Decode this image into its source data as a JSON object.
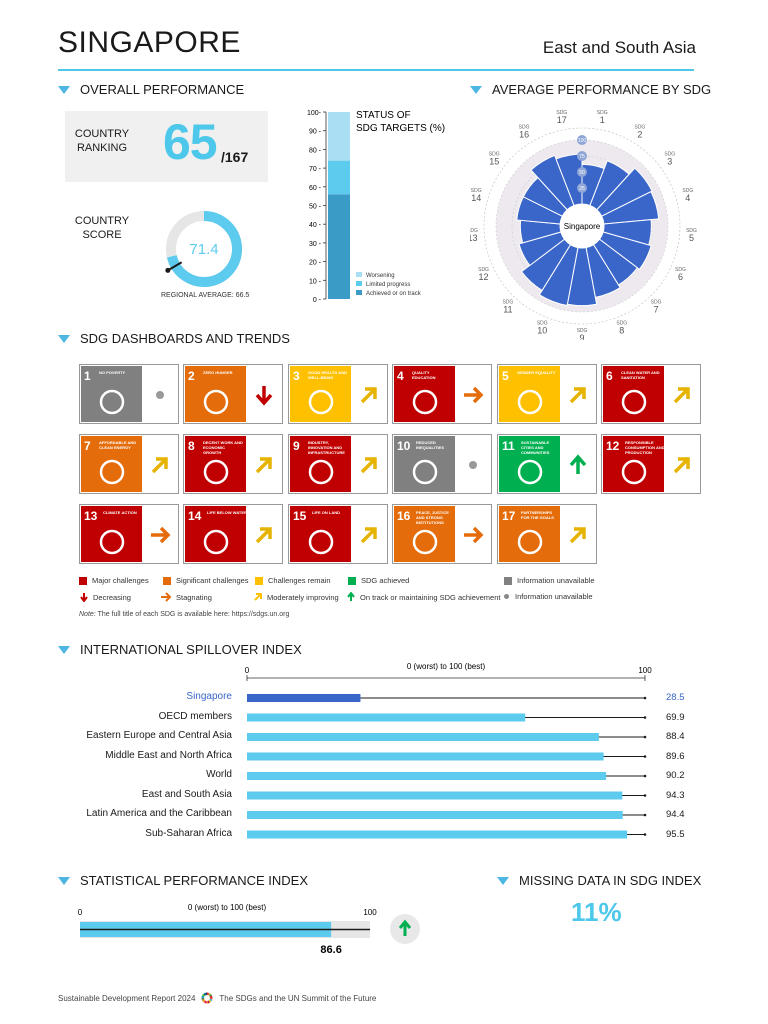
{
  "header": {
    "country": "SINGAPORE",
    "region": "East and South Asia"
  },
  "overall": {
    "title": "OVERALL PERFORMANCE",
    "rank_label_1": "COUNTRY",
    "rank_label_2": "RANKING",
    "rank": "65",
    "rank_of": "/167",
    "score_label_1": "COUNTRY",
    "score_label_2": "SCORE",
    "score": "71.4",
    "score_value": 71.4,
    "regional_avg_text": "REGIONAL AVERAGE: 66.5",
    "regional_avg": 66.5
  },
  "targets": {
    "title_1": "STATUS OF",
    "title_2": "SDG TARGETS (%)",
    "ticks": [
      "0",
      "10",
      "20",
      "30",
      "40",
      "50",
      "60",
      "70",
      "80",
      "90",
      "100"
    ],
    "legend": [
      "Worsening",
      "Limited progress",
      "Achieved or on track"
    ],
    "colors": [
      "#a9def3",
      "#5ccbee",
      "#3b9bc7"
    ]
  },
  "avg_sdg": {
    "title": "AVERAGE PERFORMANCE BY SDG",
    "center_label": "Singapore",
    "ring_labels": [
      "25",
      "50",
      "75",
      "100"
    ],
    "sdg_prefix": "SDG"
  },
  "dashboards": {
    "title": "SDG DASHBOARDS AND TRENDS",
    "goals": [
      {
        "num": "1",
        "name": "NO POVERTY",
        "color": "#e5243b"
      },
      {
        "num": "2",
        "name": "ZERO HUNGER",
        "color": "#dda63a"
      },
      {
        "num": "3",
        "name": "GOOD HEALTH AND WELL-BEING",
        "color": "#4c9f38"
      },
      {
        "num": "4",
        "name": "QUALITY EDUCATION",
        "color": "#c5192d"
      },
      {
        "num": "5",
        "name": "GENDER EQUALITY",
        "color": "#ff3a21"
      },
      {
        "num": "6",
        "name": "CLEAN WATER AND SANITATION",
        "color": "#26bde2"
      },
      {
        "num": "7",
        "name": "AFFORDABLE AND CLEAN ENERGY",
        "color": "#fcc30b"
      },
      {
        "num": "8",
        "name": "DECENT WORK AND ECONOMIC GROWTH",
        "color": "#a21942"
      },
      {
        "num": "9",
        "name": "INDUSTRY, INNOVATION AND INFRASTRUCTURE",
        "color": "#fd6925"
      },
      {
        "num": "10",
        "name": "REDUCED INEQUALITIES",
        "color": "#dd1367"
      },
      {
        "num": "11",
        "name": "SUSTAINABLE CITIES AND COMMUNITIES",
        "color": "#fd9d24"
      },
      {
        "num": "12",
        "name": "RESPONSIBLE CONSUMPTION AND PRODUCTION",
        "color": "#bf8b2e"
      },
      {
        "num": "13",
        "name": "CLIMATE ACTION",
        "color": "#3f7e44"
      },
      {
        "num": "14",
        "name": "LIFE BELOW WATER",
        "color": "#0a97d9"
      },
      {
        "num": "15",
        "name": "LIFE ON LAND",
        "color": "#56c02b"
      },
      {
        "num": "16",
        "name": "PEACE, JUSTICE AND STRONG INSTITUTIONS",
        "color": "#00689d"
      },
      {
        "num": "17",
        "name": "PARTNERSHIPS FOR THE GOALS",
        "color": "#19486a"
      }
    ],
    "status_colors": [
      "#808080",
      "#e46c0a",
      "#ffc000",
      "#c00000",
      "#ffc000",
      "#c00000",
      "#e46c0a",
      "#c00000",
      "#c00000",
      "#808080",
      "#00b050",
      "#c00000",
      "#c00000",
      "#c00000",
      "#c00000",
      "#e46c0a",
      "#e46c0a"
    ],
    "trends": [
      "dot",
      "down",
      "moderate",
      "stagnating",
      "moderate",
      "moderate",
      "moderate",
      "moderate",
      "moderate",
      "dot",
      "up",
      "moderate",
      "stagnating",
      "moderate",
      "moderate",
      "stagnating",
      "moderate"
    ],
    "legend": {
      "major": "Major challenges",
      "significant": "Significant challenges",
      "remain": "Challenges remain",
      "achieved": "SDG achieved",
      "unavailable": "Information unavailable",
      "decreasing": "Decreasing",
      "stagnating": "Stagnating",
      "moderate": "Moderately improving",
      "ontrack": "On track or maintaining SDG achievement",
      "info_unavail": "Information unavailable"
    },
    "note_label": "Note:",
    "note": "The full title of each SDG is available here: https://sdgs.un.org"
  },
  "spillover": {
    "title": "INTERNATIONAL SPILLOVER INDEX",
    "axis_title": "0 (worst) to 100 (best)",
    "axis_min": "0",
    "axis_max": "100"
  },
  "spi": {
    "title": "STATISTICAL PERFORMANCE INDEX",
    "axis_title": "0 (worst) to 100 (best)",
    "axis_min": "0",
    "axis_max": "100",
    "value_text": "86.6",
    "value": 86.6
  },
  "missing": {
    "title": "MISSING DATA IN SDG INDEX",
    "value": "11%"
  },
  "footer": {
    "left": "Sustainable Development Report 2024",
    "right": "The SDGs and the UN Summit of the Future"
  },
  "chart_data": [
    {
      "type": "bar",
      "title": "STATUS OF SDG TARGETS (%)",
      "categories": [
        ""
      ],
      "series": [
        {
          "name": "Achieved or on track",
          "values": [
            56
          ]
        },
        {
          "name": "Limited progress",
          "values": [
            18
          ]
        },
        {
          "name": "Worsening",
          "values": [
            26
          ]
        }
      ],
      "ylim": [
        0,
        100
      ]
    },
    {
      "type": "bar",
      "title": "AVERAGE PERFORMANCE BY SDG",
      "categories": [
        "1",
        "2",
        "3",
        "4",
        "5",
        "6",
        "7",
        "8",
        "9",
        "10",
        "11",
        "12",
        "13",
        "14",
        "15",
        "16",
        "17"
      ],
      "values": [
        62,
        75,
        88,
        86,
        74,
        78,
        74,
        79,
        90,
        92,
        84,
        68,
        62,
        68,
        68,
        84,
        78
      ],
      "ylim": [
        0,
        100
      ]
    },
    {
      "type": "bar",
      "title": "INTERNATIONAL SPILLOVER INDEX",
      "categories": [
        "Singapore",
        "OECD members",
        "Eastern Europe and Central Asia",
        "Middle East and North Africa",
        "World",
        "East and South Asia",
        "Latin America and the Caribbean",
        "Sub-Saharan Africa"
      ],
      "values": [
        28.5,
        69.9,
        88.4,
        89.6,
        90.2,
        94.3,
        94.4,
        95.5
      ],
      "xlabel": "0 (worst) to 100 (best)",
      "ylim": [
        0,
        100
      ]
    },
    {
      "type": "bar",
      "title": "STATISTICAL PERFORMANCE INDEX",
      "categories": [
        ""
      ],
      "values": [
        86.6
      ],
      "xlabel": "0 (worst) to 100 (best)",
      "ylim": [
        0,
        100
      ]
    }
  ]
}
